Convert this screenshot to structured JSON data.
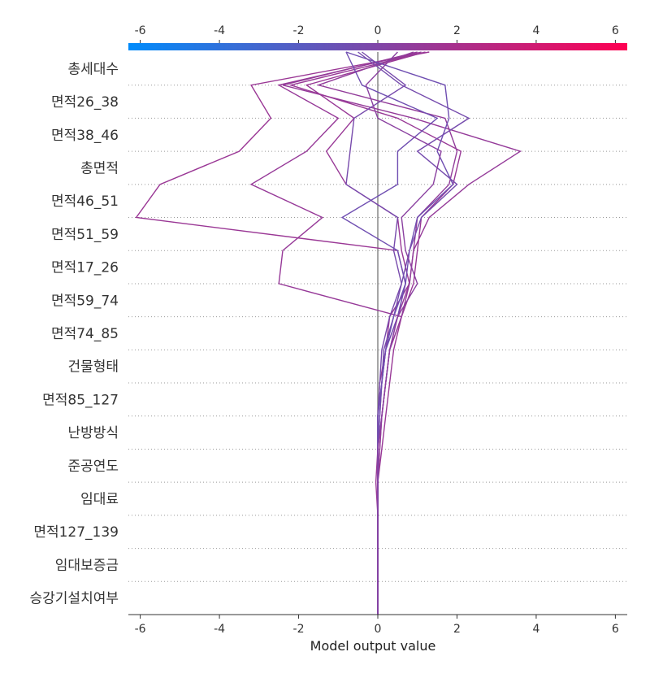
{
  "chart_data": {
    "type": "line",
    "subtype": "decision-plot",
    "title": "",
    "xlabel": "Model output value",
    "ylabel": "",
    "xlim": [
      -6.3,
      6.3
    ],
    "x_ticks": [
      -6,
      -4,
      -2,
      0,
      2,
      4,
      6
    ],
    "x_tick_labels": [
      "-6",
      "-4",
      "-2",
      "0",
      "2",
      "4",
      "6"
    ],
    "base_value": 0,
    "grid": "dotted horizontal lines between features",
    "colorbar": {
      "position": "top",
      "range": [
        -6.3,
        6.3
      ],
      "tick_labels": [
        "-6",
        "-4",
        "-2",
        "0",
        "2",
        "4",
        "6"
      ],
      "colors": [
        "#008bfb",
        "#ff0052"
      ]
    },
    "features": [
      "총세대수",
      "면적26_38",
      "면적38_46",
      "총면적",
      "면적46_51",
      "면적51_59",
      "면적17_26",
      "면적59_74",
      "면적74_85",
      "건물형태",
      "면적85_127",
      "난방방식",
      "준공연도",
      "임대료",
      "면적127_139",
      "임대보증금",
      "승강기설치여부"
    ],
    "series": [
      {
        "values": [
          1.2,
          -1.8,
          -0.6,
          -1.3,
          -0.8,
          0.5,
          0.6,
          0.8,
          0.3,
          0.2,
          0.1,
          0.05,
          0.0,
          -0.05,
          0.0,
          0.0,
          0.0,
          0.0
        ]
      },
      {
        "values": [
          1.3,
          -3.2,
          -2.7,
          -3.5,
          -5.5,
          -6.1,
          0.5,
          0.7,
          0.5,
          0.2,
          0.05,
          0.0,
          0.0,
          0.0,
          0.0,
          0.0,
          0.0,
          0.0
        ]
      },
      {
        "values": [
          1.1,
          -2.5,
          -1.0,
          -1.8,
          -3.2,
          -1.4,
          -2.4,
          -2.5,
          0.6,
          0.3,
          0.2,
          0.1,
          0.0,
          0.0,
          0.0,
          0.0,
          0.0,
          0.0
        ]
      },
      {
        "values": [
          1.0,
          -2.4,
          0.9,
          3.6,
          2.3,
          1.3,
          0.9,
          0.8,
          0.5,
          0.3,
          0.2,
          0.1,
          0.05,
          0.0,
          0.0,
          0.0,
          0.0,
          0.0
        ]
      },
      {
        "values": [
          1.2,
          -2.2,
          0.5,
          2.1,
          1.9,
          1.1,
          1.0,
          0.9,
          0.6,
          0.4,
          0.3,
          0.2,
          0.1,
          0.0,
          0.0,
          0.0,
          0.0,
          0.0
        ]
      },
      {
        "values": [
          0.9,
          -1.5,
          1.7,
          2.0,
          1.8,
          1.0,
          0.9,
          0.8,
          0.6,
          0.3,
          0.2,
          0.1,
          0.05,
          0.0,
          0.0,
          0.0,
          0.0,
          0.0
        ]
      },
      {
        "values": [
          -0.8,
          1.7,
          1.8,
          1.5,
          1.9,
          1.0,
          0.8,
          0.7,
          0.5,
          0.2,
          0.1,
          0.05,
          0.0,
          0.0,
          0.0,
          0.0,
          0.0,
          0.0
        ]
      },
      {
        "values": [
          -0.5,
          0.6,
          2.3,
          1.0,
          2.0,
          1.1,
          0.8,
          0.6,
          0.4,
          0.15,
          0.1,
          0.0,
          0.0,
          0.0,
          0.0,
          0.0,
          0.0,
          0.0
        ]
      },
      {
        "values": [
          -0.4,
          0.7,
          -0.6,
          -0.7,
          -0.8,
          0.5,
          0.4,
          0.6,
          0.3,
          0.1,
          0.05,
          0.0,
          0.0,
          0.0,
          0.0,
          0.0,
          0.0,
          0.0
        ]
      },
      {
        "values": [
          -0.8,
          -0.4,
          1.5,
          0.5,
          0.5,
          -0.9,
          0.5,
          0.7,
          0.4,
          0.2,
          0.1,
          0.0,
          0.0,
          0.0,
          0.0,
          0.0,
          0.0,
          0.0
        ]
      },
      {
        "values": [
          0.5,
          -0.3,
          0.0,
          1.6,
          1.4,
          0.6,
          0.7,
          1.0,
          0.5,
          0.3,
          0.2,
          0.1,
          0.0,
          0.0,
          0.0,
          0.0,
          0.0,
          0.0
        ]
      }
    ]
  }
}
